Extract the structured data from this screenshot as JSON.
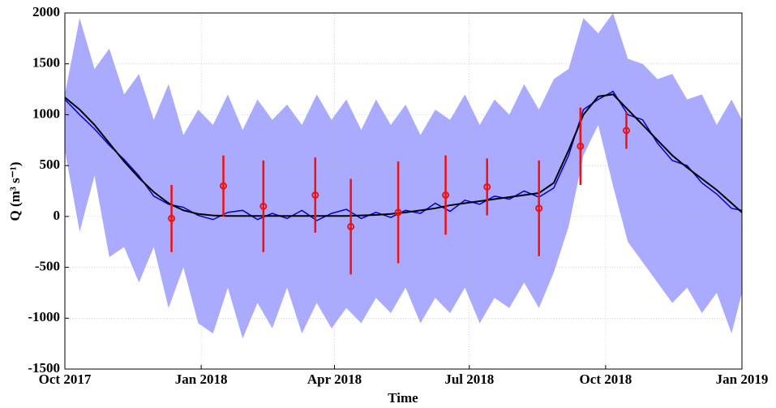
{
  "chart_data": {
    "type": "line",
    "xlabel": "Time",
    "ylabel": "Q (m³ s⁻¹)",
    "x": [
      0,
      10,
      20,
      30,
      40,
      50,
      60,
      70,
      80,
      90,
      100,
      110,
      120,
      130,
      140,
      150,
      160,
      170,
      180,
      190,
      200,
      210,
      220,
      230,
      240,
      250,
      260,
      270,
      280,
      290,
      300,
      310,
      320,
      330,
      340,
      350,
      360,
      370,
      380,
      390,
      400,
      410,
      420,
      430,
      440,
      450,
      457
    ],
    "band": {
      "color": "#aaaaff",
      "upper": [
        1200,
        1950,
        1450,
        1650,
        1200,
        1400,
        950,
        1300,
        800,
        1050,
        900,
        1200,
        850,
        1150,
        950,
        1100,
        900,
        1200,
        950,
        1150,
        850,
        1150,
        900,
        1100,
        800,
        1050,
        950,
        1200,
        900,
        1150,
        1000,
        1300,
        1050,
        1350,
        1450,
        1950,
        1800,
        2000,
        1550,
        1500,
        1350,
        1400,
        1150,
        1200,
        900,
        1150,
        950
      ],
      "lower": [
        650,
        -150,
        400,
        -400,
        -300,
        -650,
        -300,
        -900,
        -500,
        -1050,
        -1150,
        -700,
        -1200,
        -850,
        -1100,
        -700,
        -1150,
        -850,
        -1100,
        -900,
        -1050,
        -800,
        -950,
        -700,
        -1050,
        -800,
        -950,
        -700,
        -1050,
        -800,
        -900,
        -650,
        -900,
        -550,
        -100,
        600,
        900,
        300,
        -250,
        -450,
        -650,
        -850,
        -700,
        -950,
        -750,
        -1150,
        -750
      ]
    },
    "series": [
      {
        "color": "#0000cc",
        "values": [
          1150,
          1000,
          860,
          700,
          560,
          400,
          200,
          120,
          90,
          10,
          -30,
          40,
          60,
          -30,
          30,
          -20,
          60,
          -40,
          30,
          70,
          -20,
          40,
          -10,
          60,
          30,
          130,
          50,
          160,
          120,
          200,
          170,
          250,
          190,
          280,
          600,
          1050,
          1150,
          1230,
          1000,
          950,
          720,
          550,
          500,
          330,
          220,
          80,
          60
        ]
      },
      {
        "color": "#000000",
        "values": [
          1170,
          1050,
          900,
          720,
          540,
          380,
          240,
          130,
          60,
          25,
          10,
          5,
          5,
          5,
          5,
          5,
          5,
          5,
          5,
          5,
          10,
          15,
          25,
          40,
          60,
          80,
          110,
          130,
          150,
          170,
          190,
          210,
          230,
          330,
          650,
          1000,
          1180,
          1200,
          1050,
          900,
          750,
          600,
          480,
          370,
          260,
          130,
          40
        ]
      }
    ],
    "points": {
      "color": "#ee1111",
      "x": [
        72,
        107,
        134,
        169,
        193,
        225,
        257,
        285,
        320,
        348,
        379
      ],
      "values": [
        -20,
        300,
        100,
        210,
        -100,
        40,
        210,
        290,
        80,
        690,
        845
      ],
      "errors": [
        330,
        300,
        450,
        370,
        470,
        500,
        390,
        280,
        470,
        380,
        180
      ]
    },
    "xlim": [
      0,
      457
    ],
    "xticks": [
      {
        "value": 0,
        "label": "Oct 2017"
      },
      {
        "value": 92,
        "label": "Jan 2018"
      },
      {
        "value": 182,
        "label": "Apr 2018"
      },
      {
        "value": 273,
        "label": "Jul 2018"
      },
      {
        "value": 365,
        "label": "Oct 2018"
      },
      {
        "value": 457,
        "label": "Jan 2019"
      }
    ],
    "ylim": [
      -1500,
      2000
    ],
    "yticks": [
      -1500,
      -1000,
      -500,
      0,
      500,
      1000,
      1500,
      2000
    ],
    "grid": true
  }
}
